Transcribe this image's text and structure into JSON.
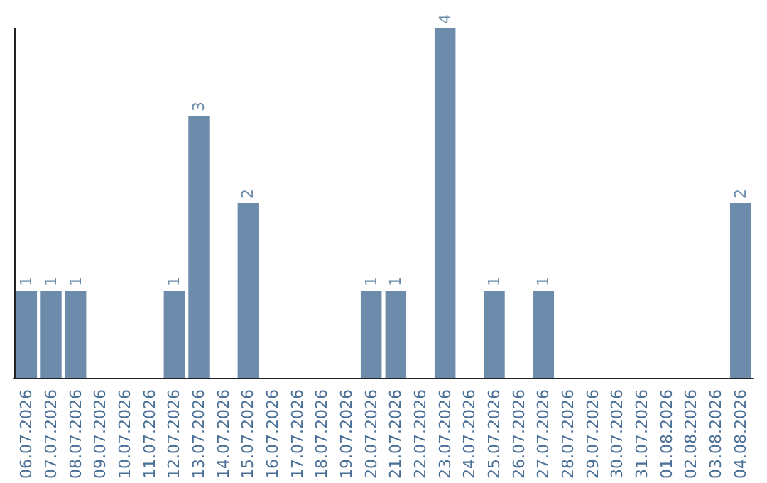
{
  "chart_data": {
    "type": "bar",
    "categories": [
      "06.07.2026",
      "07.07.2026",
      "08.07.2026",
      "09.07.2026",
      "10.07.2026",
      "11.07.2026",
      "12.07.2026",
      "13.07.2026",
      "14.07.2026",
      "15.07.2026",
      "16.07.2026",
      "17.07.2026",
      "18.07.2026",
      "19.07.2026",
      "20.07.2026",
      "21.07.2026",
      "22.07.2026",
      "23.07.2026",
      "24.07.2026",
      "25.07.2026",
      "26.07.2026",
      "27.07.2026",
      "28.07.2026",
      "29.07.2026",
      "30.07.2026",
      "31.07.2026",
      "01.08.2026",
      "02.08.2026",
      "03.08.2026",
      "04.08.2026"
    ],
    "values": [
      1,
      1,
      1,
      0,
      0,
      0,
      1,
      3,
      0,
      2,
      0,
      0,
      0,
      0,
      1,
      1,
      0,
      4,
      0,
      1,
      0,
      1,
      0,
      0,
      0,
      0,
      0,
      0,
      0,
      2
    ],
    "value_labels": [
      "1",
      "1",
      "1",
      null,
      null,
      null,
      "1",
      "3",
      null,
      "2",
      null,
      null,
      null,
      null,
      "1",
      "1",
      null,
      "4",
      null,
      "1",
      null,
      "1",
      null,
      null,
      null,
      null,
      null,
      null,
      null,
      "2"
    ],
    "color": "#6d8cab",
    "tick_labels": "x"
  }
}
